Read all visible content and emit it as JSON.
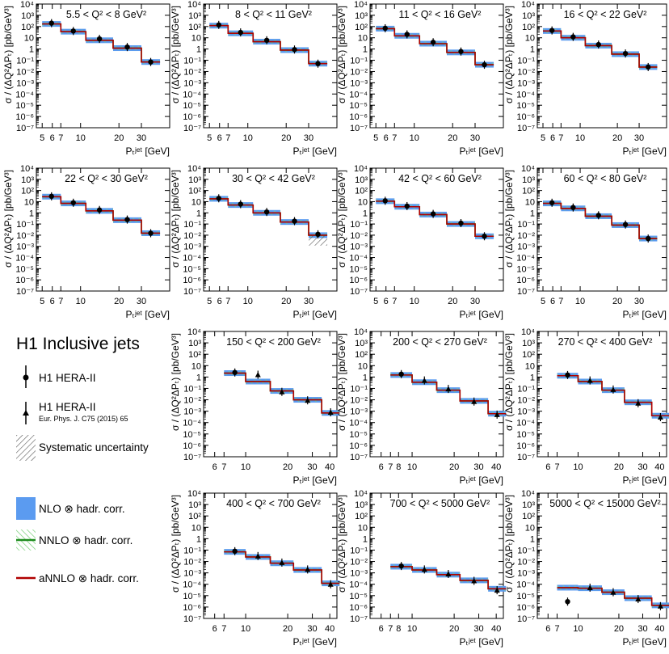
{
  "legend": {
    "title": "H1 Inclusive jets",
    "entries": [
      {
        "key": "h1-hera-ii-circle",
        "label": "H1 HERA-II"
      },
      {
        "key": "h1-hera-ii-triangle",
        "label": "H1 HERA-II",
        "ref": "Eur. Phys. J. C75 (2015) 65"
      },
      {
        "key": "systematic",
        "label": "Systematic uncertainty"
      },
      {
        "key": "nlo",
        "label": "NLO ⊗ hadr. corr."
      },
      {
        "key": "nnlo",
        "label": "NNLO ⊗ hadr. corr."
      },
      {
        "key": "annlo",
        "label": "aNNLO ⊗ hadr. corr."
      }
    ]
  },
  "colors": {
    "nlo": "#5b9bf0",
    "nnlo": "#1e8c1e",
    "nnlo_hatch": "#7fd27f",
    "annlo": "#b00000",
    "data": "#000000",
    "syst": "#555555"
  },
  "axes": {
    "ylabel": "σ / (ΔQ²ΔPₜ) [pb/GeV³]",
    "xlabel": "Pₜʲᵉᵗ  [GeV]",
    "ylim_log": [
      -7,
      4
    ],
    "y_tick_labels": [
      "10⁻⁷",
      "10⁻⁶",
      "10⁻⁵",
      "10⁻⁴",
      "10⁻³",
      "10⁻²",
      "10⁻¹",
      "1",
      "10",
      "10²",
      "10³",
      "10⁴"
    ]
  },
  "chart_data": [
    {
      "type": "line",
      "title": "5.5 < Q² < 8 GeV²",
      "marker": "circle",
      "xlim": [
        4.5,
        50
      ],
      "x_edges": [
        5,
        7,
        11,
        18,
        30,
        42
      ],
      "x_tick_labels": [
        "5",
        "6",
        "7",
        "10",
        "20",
        "30"
      ],
      "x_tick_values": [
        5,
        6,
        7,
        10,
        20,
        30
      ],
      "data_y": [
        200,
        40,
        8,
        1.5,
        0.07,
        0.009
      ],
      "theory_y": [
        170,
        35,
        6,
        1.2,
        0.07,
        0.012
      ]
    },
    {
      "type": "line",
      "title": "8 < Q² < 11 GeV²",
      "marker": "circle",
      "xlim": [
        4.5,
        50
      ],
      "x_edges": [
        5,
        7,
        11,
        18,
        30,
        42
      ],
      "x_tick_labels": [
        "5",
        "6",
        "7",
        "10",
        "20",
        "30"
      ],
      "x_tick_values": [
        5,
        6,
        7,
        10,
        20,
        30
      ],
      "data_y": [
        140,
        30,
        6,
        0.9,
        0.05,
        0.006
      ],
      "theory_y": [
        120,
        25,
        4.5,
        0.8,
        0.05,
        0.007
      ]
    },
    {
      "type": "line",
      "title": "11 < Q² < 16 GeV²",
      "marker": "circle",
      "xlim": [
        4.5,
        50
      ],
      "x_edges": [
        5,
        7,
        11,
        18,
        30,
        42
      ],
      "x_tick_labels": [
        "5",
        "6",
        "7",
        "10",
        "20",
        "30"
      ],
      "x_tick_values": [
        5,
        6,
        7,
        10,
        20,
        30
      ],
      "data_y": [
        70,
        20,
        4,
        0.6,
        0.04,
        0.005
      ],
      "theory_y": [
        65,
        15,
        3,
        0.5,
        0.04,
        0.006
      ]
    },
    {
      "type": "line",
      "title": "16 < Q² < 22 GeV²",
      "marker": "circle",
      "xlim": [
        4.5,
        50
      ],
      "x_edges": [
        5,
        7,
        11,
        18,
        30,
        42
      ],
      "x_tick_labels": [
        "5",
        "6",
        "7",
        "10",
        "20",
        "30"
      ],
      "x_tick_values": [
        5,
        6,
        7,
        10,
        20,
        30
      ],
      "data_y": [
        45,
        12,
        2.5,
        0.4,
        0.025,
        0.003
      ],
      "theory_y": [
        40,
        10,
        2,
        0.35,
        0.025,
        0.004
      ]
    },
    {
      "type": "line",
      "title": "22 < Q² < 30 GeV²",
      "marker": "circle",
      "xlim": [
        4.5,
        50
      ],
      "x_edges": [
        5,
        7,
        11,
        18,
        30,
        42
      ],
      "x_tick_labels": [
        "5",
        "6",
        "7",
        "10",
        "20",
        "30"
      ],
      "x_tick_values": [
        5,
        6,
        7,
        10,
        20,
        30
      ],
      "data_y": [
        30,
        8,
        1.8,
        0.25,
        0.015,
        0.002
      ],
      "theory_y": [
        28,
        7,
        1.5,
        0.22,
        0.015,
        0.0018
      ]
    },
    {
      "type": "line",
      "title": "30 < Q² < 42 GeV²",
      "marker": "circle",
      "xlim": [
        4.5,
        50
      ],
      "x_edges": [
        5,
        7,
        11,
        18,
        30,
        42
      ],
      "x_tick_labels": [
        "5",
        "6",
        "7",
        "10",
        "20",
        "30"
      ],
      "x_tick_values": [
        5,
        6,
        7,
        10,
        20,
        30
      ],
      "data_y": [
        20,
        6,
        1.2,
        0.18,
        0.012,
        0.0015
      ],
      "theory_y": [
        18,
        5,
        1,
        0.15,
        0.01,
        0.0015
      ],
      "syst_last": true
    },
    {
      "type": "line",
      "title": "42 < Q² < 60 GeV²",
      "marker": "circle",
      "xlim": [
        4.5,
        50
      ],
      "x_edges": [
        5,
        7,
        11,
        18,
        30,
        42
      ],
      "x_tick_labels": [
        "5",
        "6",
        "7",
        "10",
        "20",
        "30"
      ],
      "x_tick_values": [
        5,
        6,
        7,
        10,
        20,
        30
      ],
      "data_y": [
        12,
        4,
        0.8,
        0.12,
        0.008,
        0.001
      ],
      "theory_y": [
        11,
        3.5,
        0.7,
        0.1,
        0.008,
        0.0012
      ]
    },
    {
      "type": "line",
      "title": "60 < Q² < 80 GeV²",
      "marker": "circle",
      "xlim": [
        4.5,
        50
      ],
      "x_edges": [
        5,
        7,
        11,
        18,
        30,
        42
      ],
      "x_tick_labels": [
        "5",
        "6",
        "7",
        "10",
        "20",
        "30"
      ],
      "x_tick_values": [
        5,
        6,
        7,
        10,
        20,
        30
      ],
      "data_y": [
        8,
        3,
        0.6,
        0.09,
        0.005,
        0.0003
      ],
      "theory_y": [
        7,
        2.5,
        0.5,
        0.08,
        0.005,
        0.0005
      ]
    },
    {
      "type": "line",
      "title": "150 < Q² < 200 GeV²",
      "marker": "triangle",
      "xlim": [
        5,
        45
      ],
      "x_edges": [
        7,
        10,
        15,
        22,
        35,
        47
      ],
      "x_tick_labels": [
        "6",
        "7",
        "10",
        "20",
        "30",
        "40"
      ],
      "x_tick_values": [
        6,
        7,
        10,
        20,
        30,
        40
      ],
      "data_y": [
        2.5,
        1.6,
        0.05,
        0.009,
        0.0008,
        0.0008
      ],
      "theory_y": [
        2.2,
        0.4,
        0.06,
        0.01,
        0.0007,
        0.0008
      ],
      "first_circle": true
    },
    {
      "type": "line",
      "title": "200 < Q² < 270 GeV²",
      "marker": "triangle",
      "xlim": [
        5,
        45
      ],
      "x_edges": [
        7,
        10,
        15,
        22,
        35,
        47
      ],
      "x_tick_labels": [
        "6",
        "7",
        "8",
        "10",
        "20",
        "30",
        "40"
      ],
      "x_tick_values": [
        6,
        7,
        8,
        10,
        20,
        30,
        40
      ],
      "data_y": [
        1.8,
        0.5,
        0.09,
        0.007,
        0.0005,
        0.0005
      ],
      "theory_y": [
        1.5,
        0.35,
        0.07,
        0.008,
        0.0006,
        0.0006
      ],
      "first_circle": true
    },
    {
      "type": "line",
      "title": "270 < Q² < 400 GeV²",
      "marker": "triangle",
      "xlim": [
        5,
        45
      ],
      "x_edges": [
        7,
        10,
        15,
        22,
        35,
        47
      ],
      "x_tick_labels": [
        "6",
        "7",
        "10",
        "20",
        "30",
        "40"
      ],
      "x_tick_values": [
        6,
        7,
        10,
        20,
        30,
        40
      ],
      "data_y": [
        1.5,
        0.5,
        0.08,
        0.005,
        0.0003,
        0.0003
      ],
      "theory_y": [
        1.3,
        0.4,
        0.07,
        0.006,
        0.0004,
        0.0004
      ],
      "first_circle": true
    },
    {
      "type": "line",
      "title": "400 < Q² < 700 GeV²",
      "marker": "triangle",
      "xlim": [
        5,
        45
      ],
      "x_edges": [
        7,
        10,
        15,
        22,
        35,
        47
      ],
      "x_tick_labels": [
        "6",
        "7",
        "10",
        "20",
        "30",
        "40"
      ],
      "x_tick_values": [
        6,
        7,
        10,
        20,
        30,
        40
      ],
      "data_y": [
        0.08,
        0.03,
        0.008,
        0.002,
        0.0001,
        0.0001
      ],
      "theory_y": [
        0.07,
        0.025,
        0.007,
        0.0018,
        0.00012,
        0.00012
      ],
      "first_circle": true
    },
    {
      "type": "line",
      "title": "700 < Q² < 5000 GeV²",
      "marker": "triangle",
      "xlim": [
        5,
        45
      ],
      "x_edges": [
        7,
        10,
        15,
        22,
        35,
        47
      ],
      "x_tick_labels": [
        "6",
        "7",
        "8",
        "10",
        "20",
        "30",
        "40"
      ],
      "x_tick_values": [
        6,
        7,
        8,
        10,
        20,
        30,
        40
      ],
      "data_y": [
        0.004,
        0.002,
        0.0008,
        0.0002,
        3e-05,
        3e-05
      ],
      "theory_y": [
        0.0035,
        0.0018,
        0.0007,
        0.00022,
        4e-05,
        4e-05
      ],
      "first_circle": true
    },
    {
      "type": "line",
      "title": "5000 < Q² < 15000 GeV²",
      "marker": "triangle",
      "xlim": [
        5,
        45
      ],
      "x_edges": [
        7,
        10,
        15,
        22,
        35,
        47
      ],
      "x_tick_labels": [
        "6",
        "7",
        "10",
        "20",
        "30",
        "40"
      ],
      "x_tick_values": [
        6,
        7,
        10,
        20,
        30,
        40
      ],
      "data_y": [
        3e-06,
        5e-05,
        2e-05,
        5e-06,
        1.2e-06,
        1.2e-06
      ],
      "theory_y": [
        5e-05,
        4.5e-05,
        2e-05,
        6e-06,
        1.4e-06,
        1.4e-06
      ],
      "first_circle": true
    }
  ]
}
